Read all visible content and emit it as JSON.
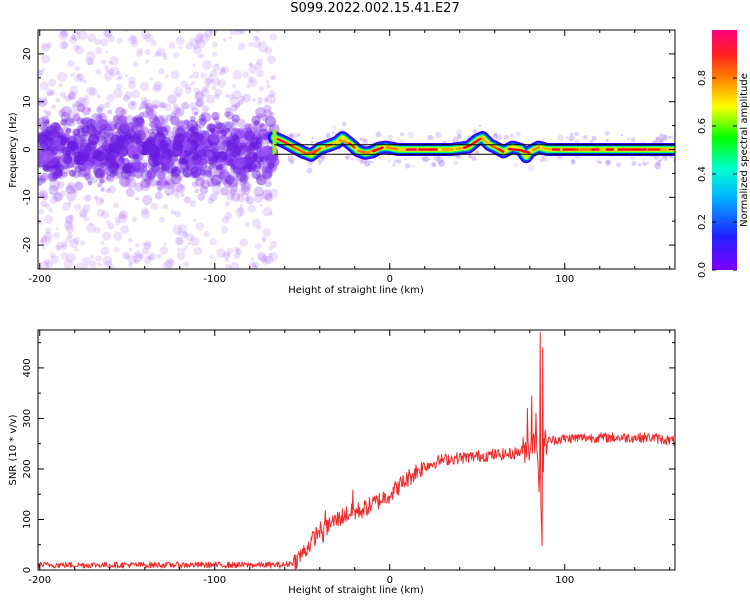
{
  "title": "S099.2022.002.15.41.E27",
  "colors": {
    "snr_line": "#ee2b2b",
    "spectral_colormap": [
      "#8000ff",
      "#0000ff",
      "#00ffff",
      "#00ff00",
      "#ffff00",
      "#ff8000",
      "#ff0000",
      "#ff0080"
    ]
  },
  "chart_data": [
    {
      "type": "heatmap",
      "title": "",
      "xlabel": "Height of straight line (km)",
      "ylabel": "Frequency (Hz)",
      "xlim": [
        -201,
        163
      ],
      "ylim": [
        -25,
        25
      ],
      "x_ticks": [
        -200,
        -100,
        0,
        100
      ],
      "x_tick_labels": [
        "-200",
        "-100",
        "0",
        "100"
      ],
      "y_ticks": [
        -20,
        -10,
        0,
        10,
        20
      ],
      "y_tick_labels": [
        "-20",
        "-10",
        "0",
        "10",
        "20"
      ],
      "colorbar": {
        "label": "Normalized spectral amplitude",
        "range": [
          0,
          1
        ],
        "ticks": [
          0.0,
          0.2,
          0.4,
          0.6,
          0.8
        ],
        "tick_labels": [
          "0.0",
          "0.2",
          "0.4",
          "0.6",
          "0.8"
        ]
      },
      "reference_lines_hz": [
        1,
        -1
      ],
      "noise_region": {
        "x_from": -201,
        "x_to": -66,
        "freq_min": -25,
        "freq_max": 25,
        "amplitude_range": [
          0.0,
          0.1
        ]
      },
      "signal_track": {
        "amplitude_range": [
          0.2,
          1.0
        ],
        "x": [
          -66,
          -60,
          -55,
          -50,
          -45,
          -40,
          -35,
          -30,
          -27,
          -22,
          -18,
          -14,
          -10,
          -6,
          -2,
          5,
          15,
          25,
          35,
          45,
          50,
          53,
          57,
          60,
          65,
          70,
          75,
          78,
          80,
          85,
          90,
          100,
          110,
          120,
          130,
          140,
          150,
          163
        ],
        "freq": [
          2.5,
          1.5,
          0.5,
          -0.5,
          -1.2,
          0.2,
          0.8,
          1.5,
          2.5,
          1.0,
          -0.3,
          -0.8,
          -0.5,
          0.3,
          0.5,
          0.0,
          0.0,
          0.0,
          0.0,
          0.5,
          2.0,
          2.5,
          1.0,
          0.5,
          -0.5,
          0.5,
          0.0,
          -1.5,
          -0.5,
          0.5,
          0.0,
          0.0,
          0.0,
          0.0,
          0.0,
          0.0,
          0.0,
          0.0
        ]
      }
    },
    {
      "type": "line",
      "title": "",
      "xlabel": "Height of straight line (km)",
      "ylabel": "SNR (10 * v/v)",
      "xlim": [
        -201,
        163
      ],
      "ylim": [
        0,
        475
      ],
      "x_ticks": [
        -200,
        -100,
        0,
        100
      ],
      "x_tick_labels": [
        "-200",
        "-100",
        "0",
        "100"
      ],
      "y_ticks": [
        0,
        100,
        200,
        300,
        400
      ],
      "y_tick_labels": [
        "0",
        "100",
        "200",
        "300",
        "400"
      ],
      "series": [
        {
          "x": [
            -201,
            -180,
            -160,
            -140,
            -120,
            -100,
            -80,
            -68,
            -60,
            -55,
            -52,
            -48,
            -45,
            -40,
            -38,
            -35,
            -30,
            -25,
            -20,
            -15,
            -10,
            -5,
            0,
            5,
            10,
            15,
            20,
            25,
            30,
            40,
            50,
            60,
            70,
            75,
            78,
            80,
            82,
            84,
            85,
            86,
            87,
            88,
            90,
            95,
            100,
            110,
            120,
            130,
            140,
            150,
            163
          ],
          "y": [
            10,
            10,
            10,
            10,
            10,
            10,
            10,
            10,
            10,
            15,
            25,
            40,
            55,
            80,
            70,
            90,
            100,
            110,
            115,
            120,
            130,
            140,
            150,
            165,
            180,
            195,
            205,
            212,
            218,
            222,
            225,
            228,
            230,
            235,
            240,
            245,
            250,
            255,
            200,
            140,
            70,
            250,
            255,
            258,
            260,
            262,
            262,
            262,
            262,
            262,
            255
          ],
          "spikes": [
            {
              "x": -37,
              "y": 118
            },
            {
              "x": -21,
              "y": 158
            },
            {
              "x": 78.5,
              "y": 320
            },
            {
              "x": 81,
              "y": 345
            },
            {
              "x": 83.5,
              "y": 310
            },
            {
              "x": 86,
              "y": 470
            },
            {
              "x": 87,
              "y": 48
            },
            {
              "x": 87.5,
              "y": 440
            }
          ]
        }
      ]
    }
  ]
}
